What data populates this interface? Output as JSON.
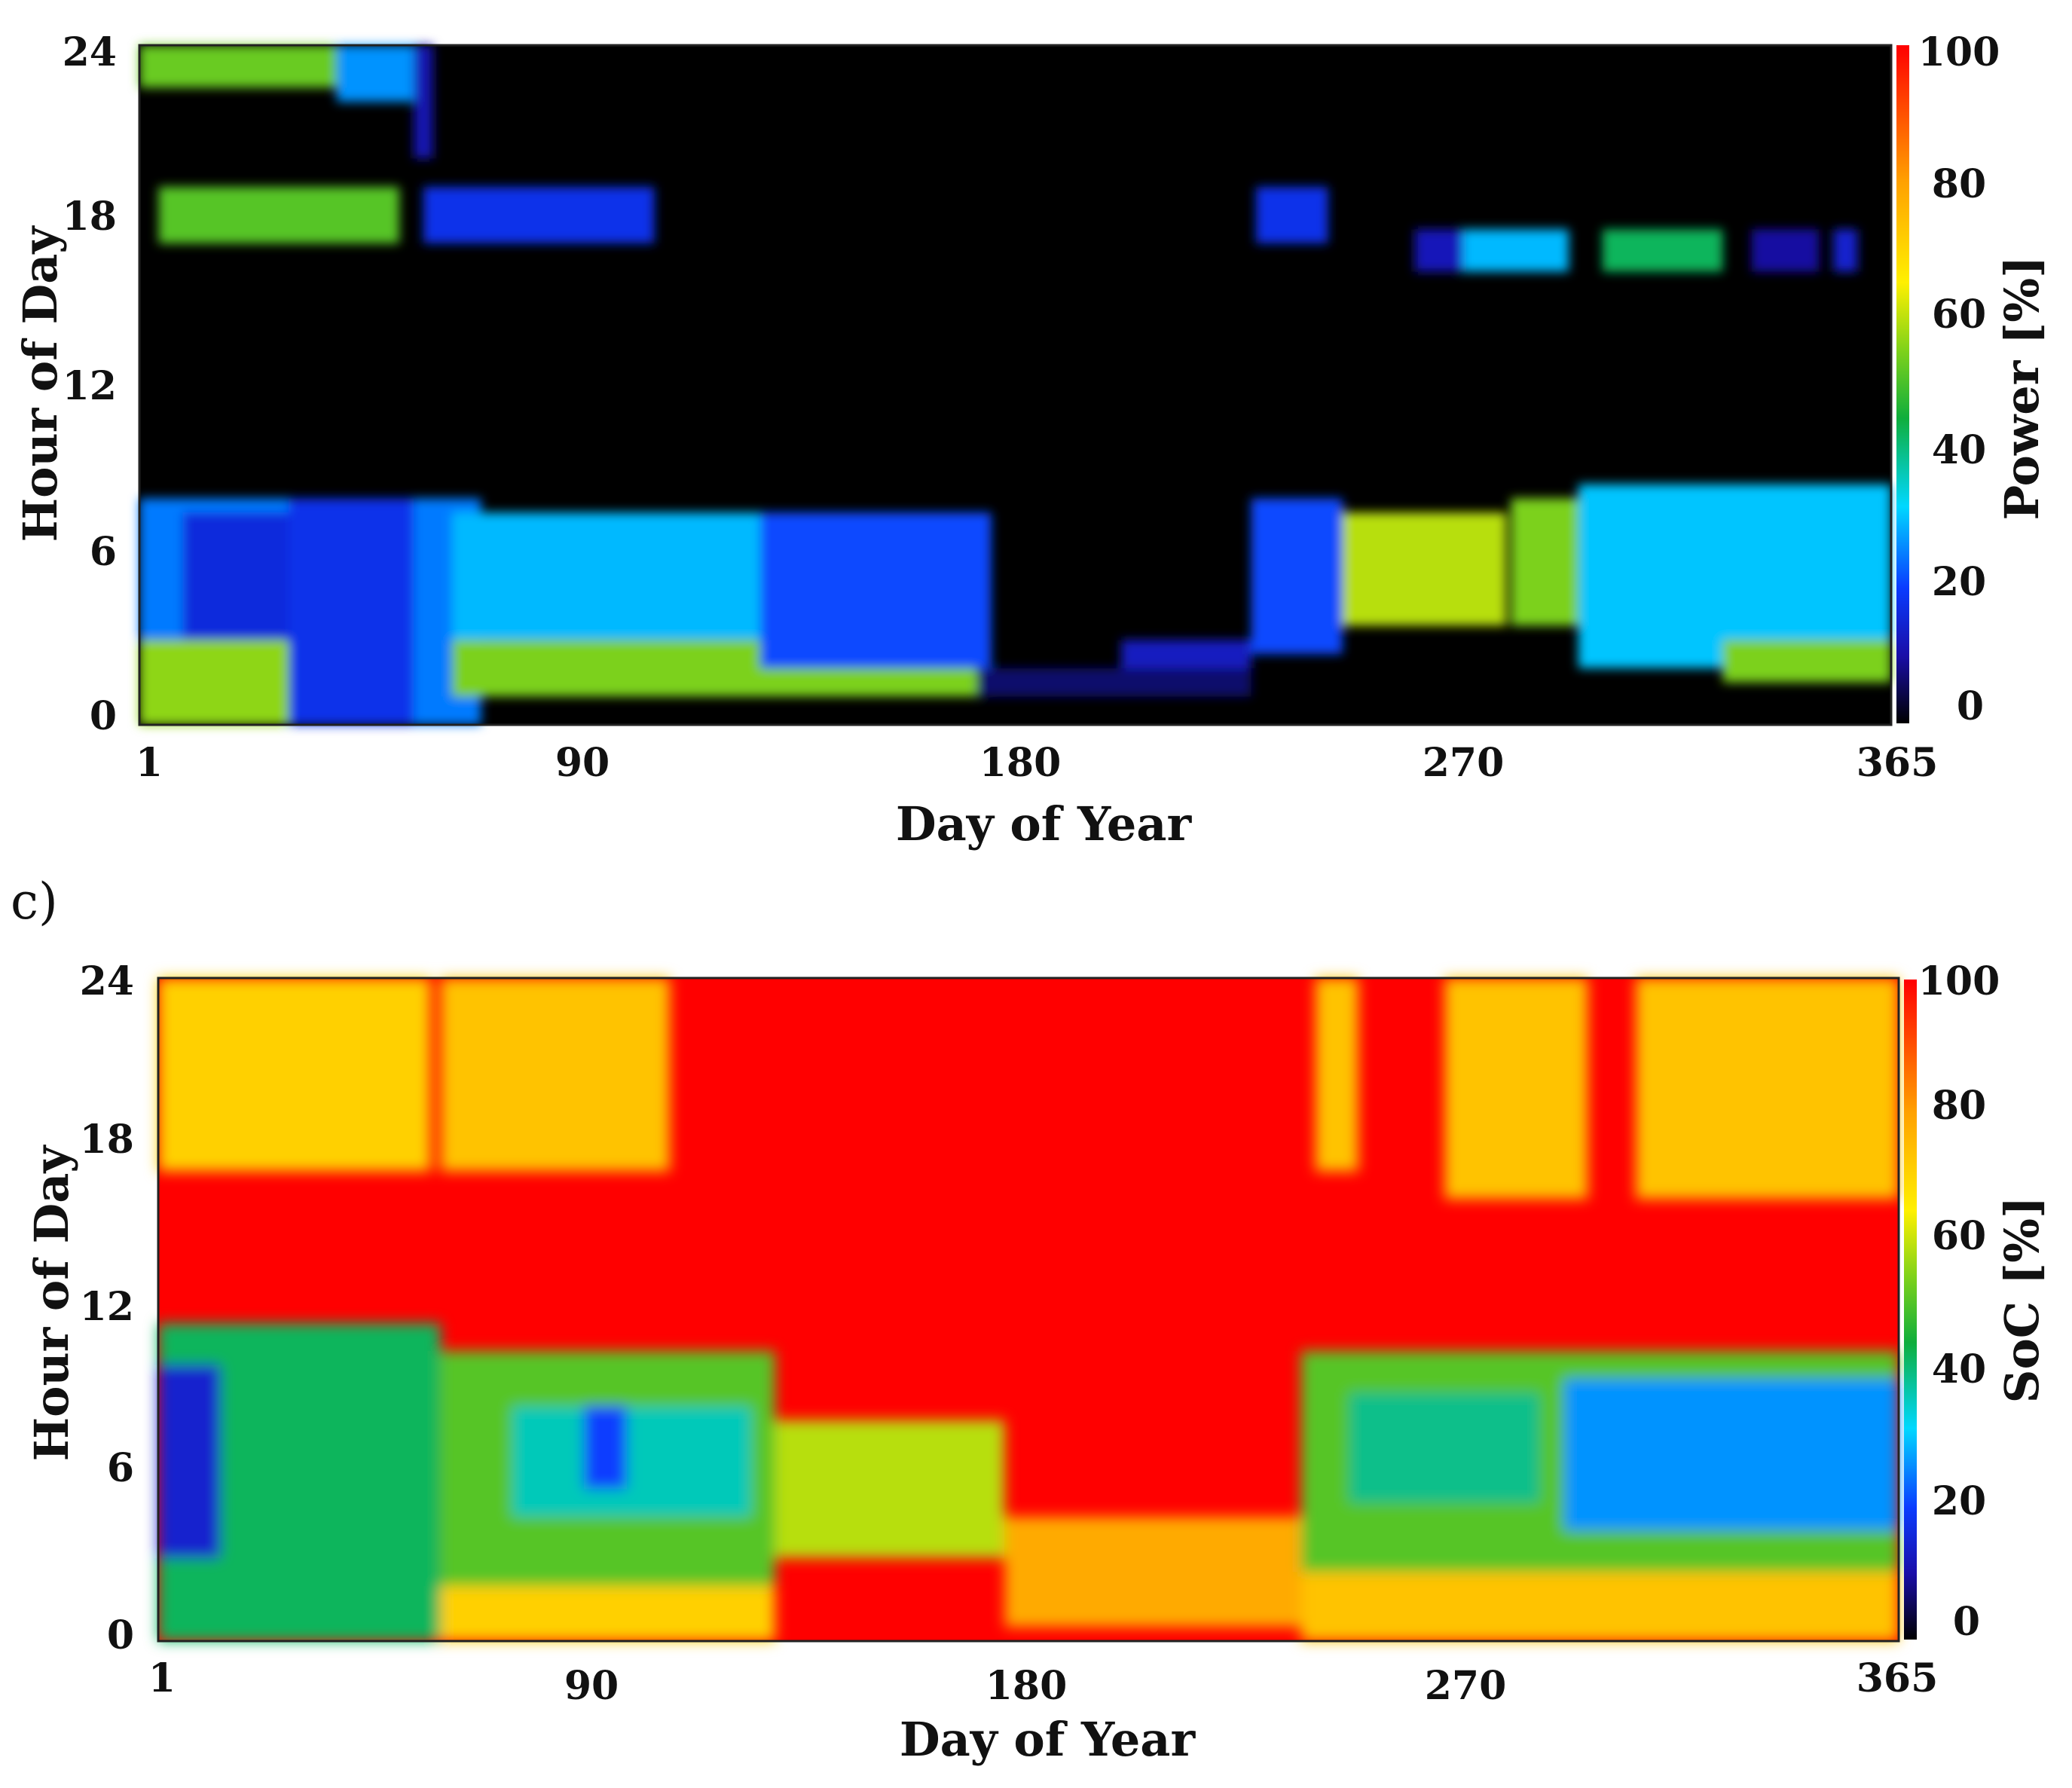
{
  "panel_label": "c)",
  "chart_data": [
    {
      "type": "heatmap",
      "title": "",
      "xlabel": "Day of Year",
      "ylabel": "Hour of Day",
      "colorbar_label": "Power [%]",
      "x_ticks": [
        "1",
        "90",
        "180",
        "270",
        "365"
      ],
      "x_tick_values": [
        1,
        90,
        180,
        270,
        365
      ],
      "y_ticks": [
        "0",
        "6",
        "12",
        "18",
        "24"
      ],
      "y_tick_values": [
        0,
        6,
        12,
        18,
        24
      ],
      "colorbar_ticks": [
        "0",
        "20",
        "40",
        "60",
        "80",
        "100"
      ],
      "colorbar_tick_values": [
        0,
        20,
        40,
        60,
        80,
        100
      ],
      "xlim": [
        1,
        365
      ],
      "ylim": [
        0,
        24
      ],
      "zlim": [
        0,
        100
      ],
      "colormap": [
        "#000000",
        "#1a0ea8",
        "#0a3cff",
        "#00d8ff",
        "#0fae3c",
        "#7fd21a",
        "#fff000",
        "#ffa000",
        "#ff0000"
      ],
      "background_value": 0,
      "regions": [
        {
          "x": [
            1,
            32
          ],
          "y": [
            0,
            3
          ],
          "value": 64
        },
        {
          "x": [
            1,
            32
          ],
          "y": [
            3,
            8
          ],
          "value": 30
        },
        {
          "x": [
            10,
            34
          ],
          "y": [
            3,
            7.5
          ],
          "value": 20
        },
        {
          "x": [
            32,
            58
          ],
          "y": [
            0,
            8
          ],
          "value": 22
        },
        {
          "x": [
            58,
            72
          ],
          "y": [
            0,
            8
          ],
          "value": 30
        },
        {
          "x": [
            66,
            178
          ],
          "y": [
            1,
            3
          ],
          "value": 62
        },
        {
          "x": [
            66,
            178
          ],
          "y": [
            3,
            7.5
          ],
          "value": 35
        },
        {
          "x": [
            130,
            178
          ],
          "y": [
            2,
            7.5
          ],
          "value": 26
        },
        {
          "x": [
            175,
            232
          ],
          "y": [
            1,
            2
          ],
          "value": 8
        },
        {
          "x": [
            205,
            232
          ],
          "y": [
            2,
            3
          ],
          "value": 16
        },
        {
          "x": [
            232,
            251
          ],
          "y": [
            2.5,
            8
          ],
          "value": 26
        },
        {
          "x": [
            251,
            285
          ],
          "y": [
            3.5,
            7.5
          ],
          "value": 68
        },
        {
          "x": [
            286,
            300
          ],
          "y": [
            3.5,
            8
          ],
          "value": 62
        },
        {
          "x": [
            300,
            365
          ],
          "y": [
            2,
            8.5
          ],
          "value": 36
        },
        {
          "x": [
            330,
            365
          ],
          "y": [
            1.5,
            3
          ],
          "value": 62
        },
        {
          "x": [
            5,
            55
          ],
          "y": [
            17,
            19
          ],
          "value": 58
        },
        {
          "x": [
            60,
            108
          ],
          "y": [
            17,
            19
          ],
          "value": 22
        },
        {
          "x": [
            233,
            248
          ],
          "y": [
            17,
            19
          ],
          "value": 22
        },
        {
          "x": [
            266,
            276
          ],
          "y": [
            16,
            17.5
          ],
          "value": 15
        },
        {
          "x": [
            276,
            298
          ],
          "y": [
            16,
            17.5
          ],
          "value": 35
        },
        {
          "x": [
            305,
            330
          ],
          "y": [
            16,
            17.5
          ],
          "value": 48
        },
        {
          "x": [
            336,
            350
          ],
          "y": [
            16,
            17.5
          ],
          "value": 12
        },
        {
          "x": [
            353,
            358
          ],
          "y": [
            16,
            17.5
          ],
          "value": 18
        },
        {
          "x": [
            1,
            42
          ],
          "y": [
            22.5,
            24
          ],
          "value": 60
        },
        {
          "x": [
            42,
            58
          ],
          "y": [
            22,
            24
          ],
          "value": 32
        },
        {
          "x": [
            58,
            62
          ],
          "y": [
            20,
            24
          ],
          "value": 14
        }
      ]
    },
    {
      "type": "heatmap",
      "title": "",
      "xlabel": "Day of Year",
      "ylabel": "Hour of Day",
      "colorbar_label": "SoC [%]",
      "x_ticks": [
        "1",
        "90",
        "180",
        "270",
        "365"
      ],
      "x_tick_values": [
        1,
        90,
        180,
        270,
        365
      ],
      "y_ticks": [
        "0",
        "6",
        "12",
        "18",
        "24"
      ],
      "y_tick_values": [
        0,
        6,
        12,
        18,
        24
      ],
      "colorbar_ticks": [
        "0",
        "20",
        "40",
        "60",
        "80",
        "100"
      ],
      "colorbar_tick_values": [
        0,
        20,
        40,
        60,
        80,
        100
      ],
      "xlim": [
        1,
        365
      ],
      "ylim": [
        0,
        24
      ],
      "zlim": [
        0,
        100
      ],
      "colormap": [
        "#000000",
        "#1a0ea8",
        "#0a3cff",
        "#00d8ff",
        "#0fae3c",
        "#7fd21a",
        "#fff000",
        "#ffa000",
        "#ff0000"
      ],
      "background_value": 100,
      "regions": [
        {
          "x": [
            1,
            58
          ],
          "y": [
            17,
            24
          ],
          "value": 80
        },
        {
          "x": [
            60,
            108
          ],
          "y": [
            17,
            24
          ],
          "value": 82
        },
        {
          "x": [
            243,
            252
          ],
          "y": [
            17,
            24
          ],
          "value": 82
        },
        {
          "x": [
            270,
            300
          ],
          "y": [
            16,
            24
          ],
          "value": 82
        },
        {
          "x": [
            310,
            365
          ],
          "y": [
            16,
            24
          ],
          "value": 82
        },
        {
          "x": [
            1,
            60
          ],
          "y": [
            0,
            11.5
          ],
          "value": 48
        },
        {
          "x": [
            1,
            14
          ],
          "y": [
            3,
            10
          ],
          "value": 18
        },
        {
          "x": [
            60,
            130
          ],
          "y": [
            0,
            2
          ],
          "value": 80
        },
        {
          "x": [
            60,
            130
          ],
          "y": [
            2,
            10.5
          ],
          "value": 58
        },
        {
          "x": [
            75,
            125
          ],
          "y": [
            4.5,
            8.5
          ],
          "value": 42
        },
        {
          "x": [
            90,
            99
          ],
          "y": [
            5.5,
            8.5
          ],
          "value": 25
        },
        {
          "x": [
            130,
            178
          ],
          "y": [
            3,
            8
          ],
          "value": 68
        },
        {
          "x": [
            178,
            240
          ],
          "y": [
            0.5,
            4.5
          ],
          "value": 86
        },
        {
          "x": [
            240,
            365
          ],
          "y": [
            0,
            2.5
          ],
          "value": 82
        },
        {
          "x": [
            240,
            365
          ],
          "y": [
            2.5,
            10.5
          ],
          "value": 58
        },
        {
          "x": [
            250,
            290
          ],
          "y": [
            5,
            9
          ],
          "value": 45
        },
        {
          "x": [
            295,
            365
          ],
          "y": [
            4,
            9.5
          ],
          "value": 32
        }
      ]
    }
  ]
}
